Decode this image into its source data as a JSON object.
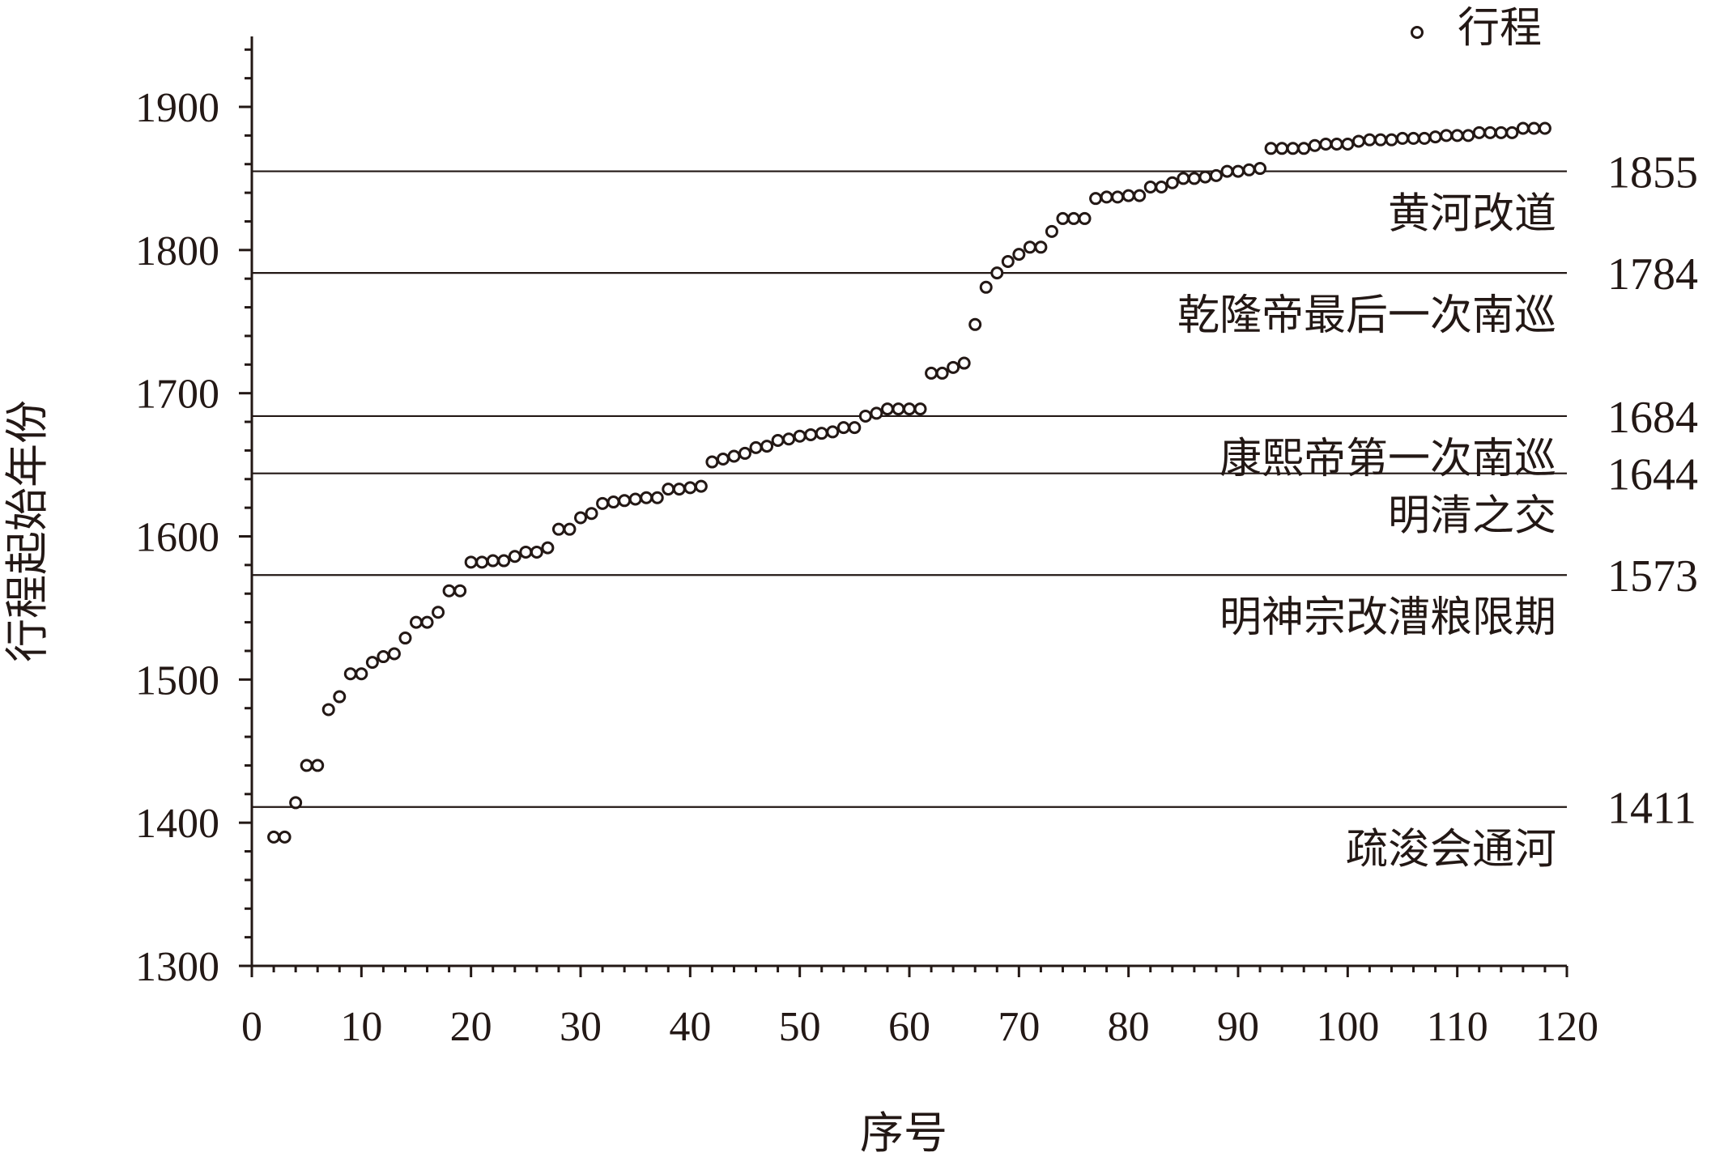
{
  "chart_data": {
    "type": "scatter",
    "xlabel": "序号",
    "ylabel": "行程起始年份",
    "xlim": [
      0,
      120
    ],
    "ylim": [
      1300,
      1950
    ],
    "xticks": [
      0,
      10,
      20,
      30,
      40,
      50,
      60,
      70,
      80,
      90,
      100,
      110,
      120
    ],
    "yticks": [
      1300,
      1400,
      1500,
      1600,
      1700,
      1800,
      1900
    ],
    "legend": {
      "position": "top-right"
    },
    "series": [
      {
        "name": "行程",
        "x": [
          2,
          3,
          4,
          5,
          6,
          7,
          8,
          9,
          10,
          11,
          12,
          13,
          14,
          15,
          16,
          17,
          18,
          19,
          20,
          21,
          22,
          23,
          24,
          25,
          26,
          27,
          28,
          29,
          30,
          31,
          32,
          33,
          34,
          35,
          36,
          37,
          38,
          39,
          40,
          41,
          42,
          43,
          44,
          45,
          46,
          47,
          48,
          49,
          50,
          51,
          52,
          53,
          54,
          55,
          56,
          57,
          58,
          59,
          60,
          61,
          62,
          63,
          64,
          65,
          66,
          67,
          68,
          69,
          70,
          71,
          72,
          73,
          74,
          75,
          76,
          77,
          78,
          79,
          80,
          81,
          82,
          83,
          84,
          85,
          86,
          87,
          88,
          89,
          90,
          91,
          92,
          93,
          94,
          95,
          96,
          97,
          98,
          99,
          100,
          101,
          102,
          103,
          104,
          105,
          106,
          107,
          108,
          109,
          110,
          111,
          112,
          113,
          114,
          115,
          116,
          117,
          118
        ],
        "y": [
          1390,
          1390,
          1414,
          1440,
          1440,
          1479,
          1488,
          1504,
          1504,
          1512,
          1516,
          1518,
          1529,
          1540,
          1540,
          1547,
          1562,
          1562,
          1582,
          1582,
          1583,
          1583,
          1586,
          1589,
          1589,
          1592,
          1605,
          1605,
          1613,
          1616,
          1623,
          1624,
          1625,
          1626,
          1627,
          1627,
          1633,
          1633,
          1634,
          1635,
          1652,
          1654,
          1656,
          1658,
          1662,
          1663,
          1667,
          1668,
          1670,
          1671,
          1672,
          1673,
          1676,
          1676,
          1684,
          1686,
          1689,
          1689,
          1689,
          1689,
          1714,
          1714,
          1718,
          1721,
          1748,
          1774,
          1784,
          1792,
          1797,
          1802,
          1802,
          1813,
          1822,
          1822,
          1822,
          1836,
          1837,
          1837,
          1838,
          1838,
          1844,
          1844,
          1847,
          1850,
          1850,
          1851,
          1852,
          1855,
          1855,
          1856,
          1857,
          1871,
          1871,
          1871,
          1871,
          1873,
          1874,
          1874,
          1874,
          1876,
          1877,
          1877,
          1877,
          1878,
          1878,
          1878,
          1879,
          1880,
          1880,
          1880,
          1882,
          1882,
          1882,
          1882,
          1885,
          1885,
          1885
        ]
      }
    ],
    "reference_lines": [
      {
        "year": 1855,
        "year_label": "1855",
        "label": "黄河改道"
      },
      {
        "year": 1784,
        "year_label": "1784",
        "label": "乾隆帝最后一次南巡"
      },
      {
        "year": 1684,
        "year_label": "1684",
        "label": "康熙帝第一次南巡"
      },
      {
        "year": 1644,
        "year_label": "1644",
        "label": "明清之交"
      },
      {
        "year": 1573,
        "year_label": "1573",
        "label": "明神宗改漕粮限期"
      },
      {
        "year": 1411,
        "year_label": "1411",
        "label": "疏浚会通河"
      }
    ]
  }
}
